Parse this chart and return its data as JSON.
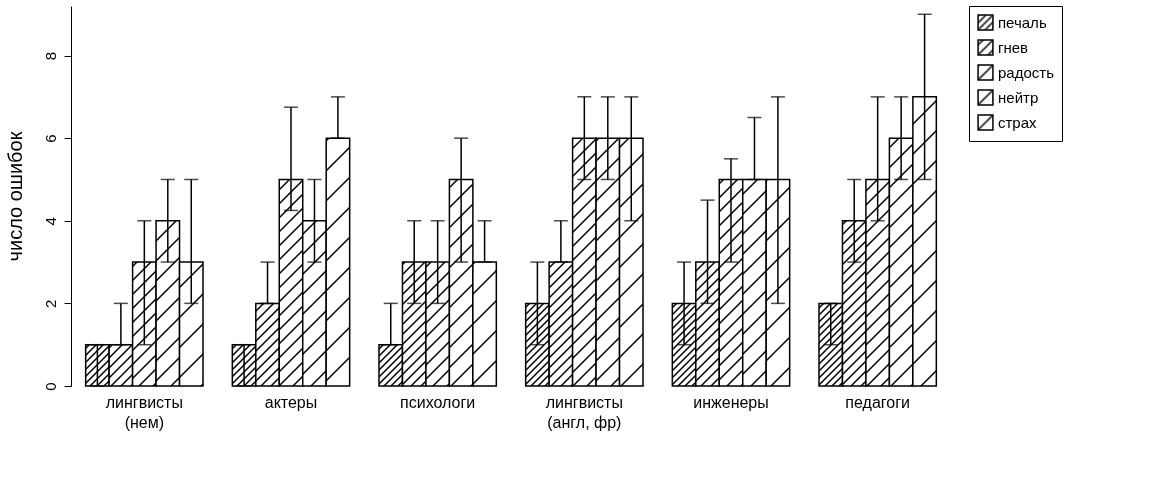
{
  "chart_data": {
    "type": "bar",
    "ylabel": "число ошибок",
    "categories": [
      "лингвисты\n(нем)",
      "актеры",
      "психологи",
      "лингвисты\n(англ, фр)",
      "инженеры",
      "педагоги"
    ],
    "series": [
      {
        "name": "печаль",
        "color": "#000000",
        "values": [
          1,
          1,
          1,
          2,
          2,
          2
        ],
        "errors": [
          [
            0,
            1
          ],
          [
            0,
            1
          ],
          [
            1,
            2
          ],
          [
            1,
            3
          ],
          [
            1,
            3
          ],
          [
            1,
            2
          ]
        ]
      },
      {
        "name": "гнев",
        "color": "#000000",
        "values": [
          1,
          2,
          3,
          3,
          3,
          4
        ],
        "errors": [
          [
            1,
            2
          ],
          [
            2,
            3
          ],
          [
            2,
            4
          ],
          [
            3,
            4
          ],
          [
            2,
            4.5
          ],
          [
            3,
            5
          ]
        ]
      },
      {
        "name": "радость",
        "color": "#000000",
        "values": [
          3,
          5,
          3,
          6,
          5,
          5
        ],
        "errors": [
          [
            1,
            4
          ],
          [
            4.25,
            6.75
          ],
          [
            2,
            4
          ],
          [
            5,
            7
          ],
          [
            3,
            5.5
          ],
          [
            4,
            7
          ]
        ]
      },
      {
        "name": "нейтр",
        "color": "#000000",
        "values": [
          4,
          4,
          5,
          6,
          5,
          6
        ],
        "errors": [
          [
            3,
            5
          ],
          [
            3,
            5
          ],
          [
            3,
            6
          ],
          [
            5,
            7
          ],
          [
            5,
            6.5
          ],
          [
            5,
            7
          ]
        ]
      },
      {
        "name": "страх",
        "color": "#000000",
        "values": [
          3,
          6,
          3,
          6,
          5,
          7
        ],
        "errors": [
          [
            2,
            5
          ],
          [
            6,
            7
          ],
          [
            3,
            4
          ],
          [
            4,
            7
          ],
          [
            2,
            7
          ],
          [
            5,
            9
          ]
        ]
      }
    ],
    "ylim": [
      0,
      9.2
    ],
    "yticks": [
      0,
      2,
      4,
      6,
      8
    ],
    "grid": false,
    "legend": "right"
  }
}
